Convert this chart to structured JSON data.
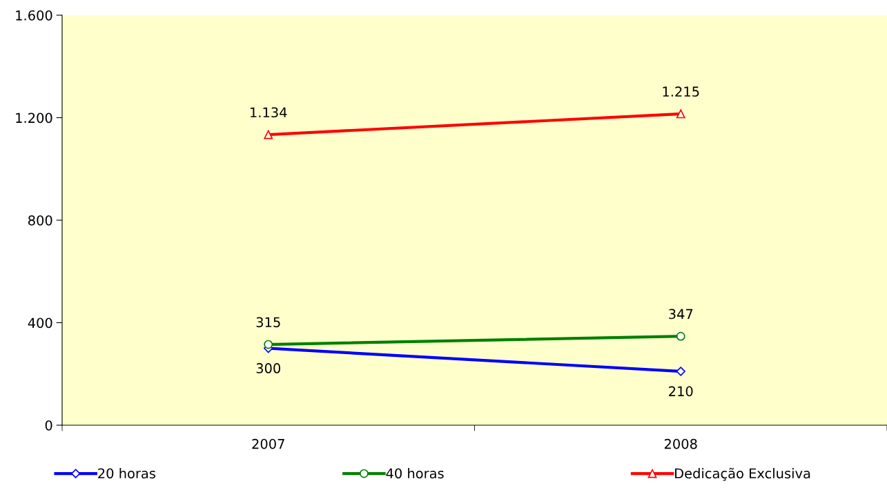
{
  "chart_data": {
    "type": "line",
    "categories": [
      "2007",
      "2008"
    ],
    "series": [
      {
        "name": "20 horas",
        "color": "#0000ff",
        "marker": "diamond",
        "values": [
          300,
          210
        ],
        "value_labels": [
          "300",
          "210"
        ]
      },
      {
        "name": "40 horas",
        "color": "#008000",
        "marker": "circle",
        "values": [
          315,
          347
        ],
        "value_labels": [
          "315",
          "347"
        ]
      },
      {
        "name": "Dedicação Exclusiva",
        "color": "#ff0000",
        "marker": "triangle",
        "values": [
          1134,
          1215
        ],
        "value_labels": [
          "1.134",
          "1.215"
        ]
      }
    ],
    "ylim": [
      0,
      1600
    ],
    "yticks": [
      {
        "value": 0,
        "label": "0"
      },
      {
        "value": 400,
        "label": "400"
      },
      {
        "value": 800,
        "label": "800"
      },
      {
        "value": 1200,
        "label": "1.200"
      },
      {
        "value": 1600,
        "label": "1.600"
      }
    ],
    "grid": false,
    "legend": "bottom",
    "line_style": "solid"
  }
}
